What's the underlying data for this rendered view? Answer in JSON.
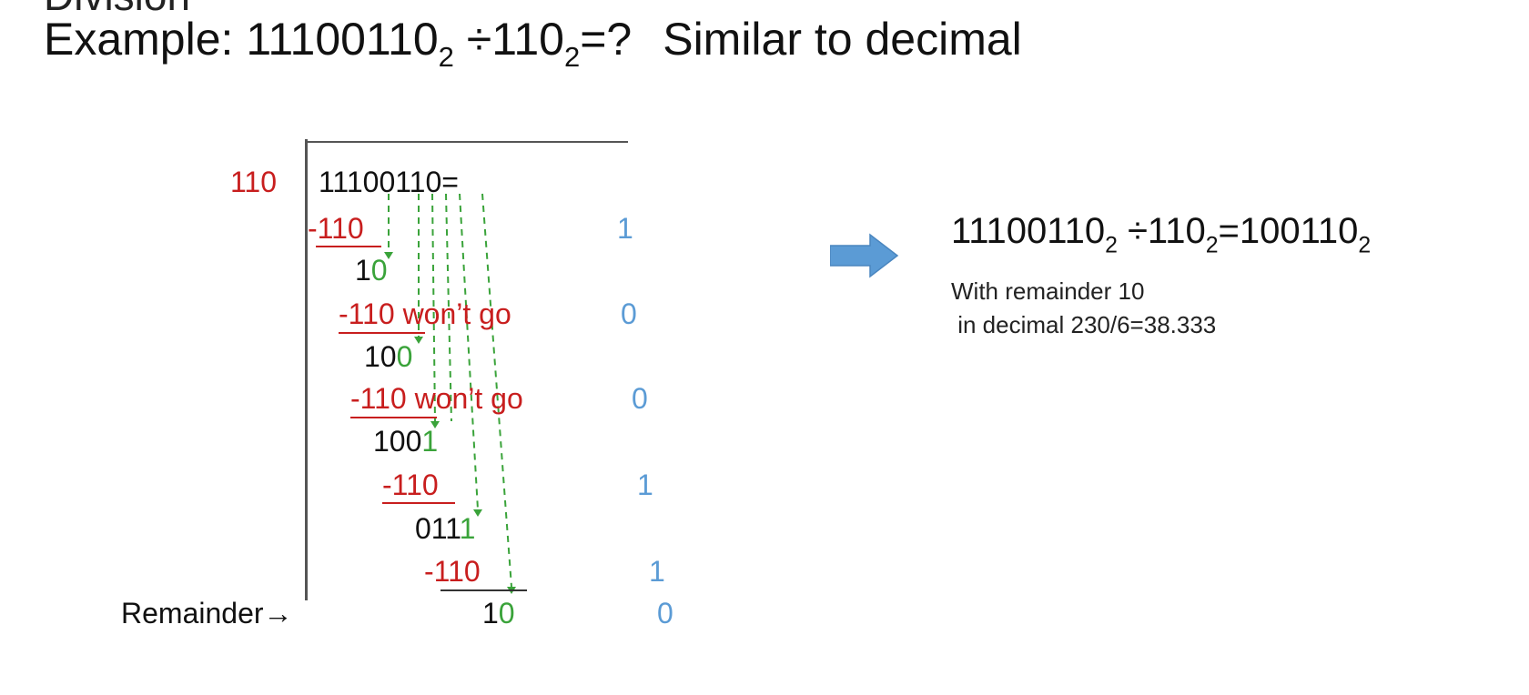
{
  "slide": {
    "heading_cut": "Division",
    "heading": {
      "prefix": "Example: 11100110",
      "sub1": "2",
      "mid": " ÷110",
      "sub2": "2",
      "suffix": "=?",
      "tail": "Similar to decimal"
    }
  },
  "long_division": {
    "divisor": "110",
    "dividend": "11100110=",
    "steps": [
      {
        "text": "-110",
        "label": ""
      },
      {
        "black": "1",
        "green": "0"
      },
      {
        "text": "-110",
        "label": " won’t go"
      },
      {
        "black": "10",
        "green": "0"
      },
      {
        "text": "-110",
        "label": " won’t go"
      },
      {
        "black": "100",
        "green": "1"
      },
      {
        "text": "-110",
        "label": ""
      },
      {
        "black": "011",
        "green": "1"
      },
      {
        "text": "-110",
        "label": ""
      },
      {
        "black": "1",
        "green": "0"
      }
    ],
    "quotient_bits": [
      "1",
      "0",
      "0",
      "1",
      "1",
      "0"
    ],
    "remainder_label": "Remainder→"
  },
  "result": {
    "lhs": "11100110",
    "lhs_sub": "2",
    "op": " ÷110",
    "op_sub": "2",
    "rhs": "=100110",
    "rhs_sub": "2",
    "note1": "With remainder 10",
    "note2": " in decimal 230/6=38.333"
  },
  "colors": {
    "red": "#c81e1e",
    "green": "#3aa33a",
    "blue": "#5b9bd5",
    "arrow": "#5b9bd5"
  },
  "icons": {
    "arrow": "right-arrow-icon"
  }
}
